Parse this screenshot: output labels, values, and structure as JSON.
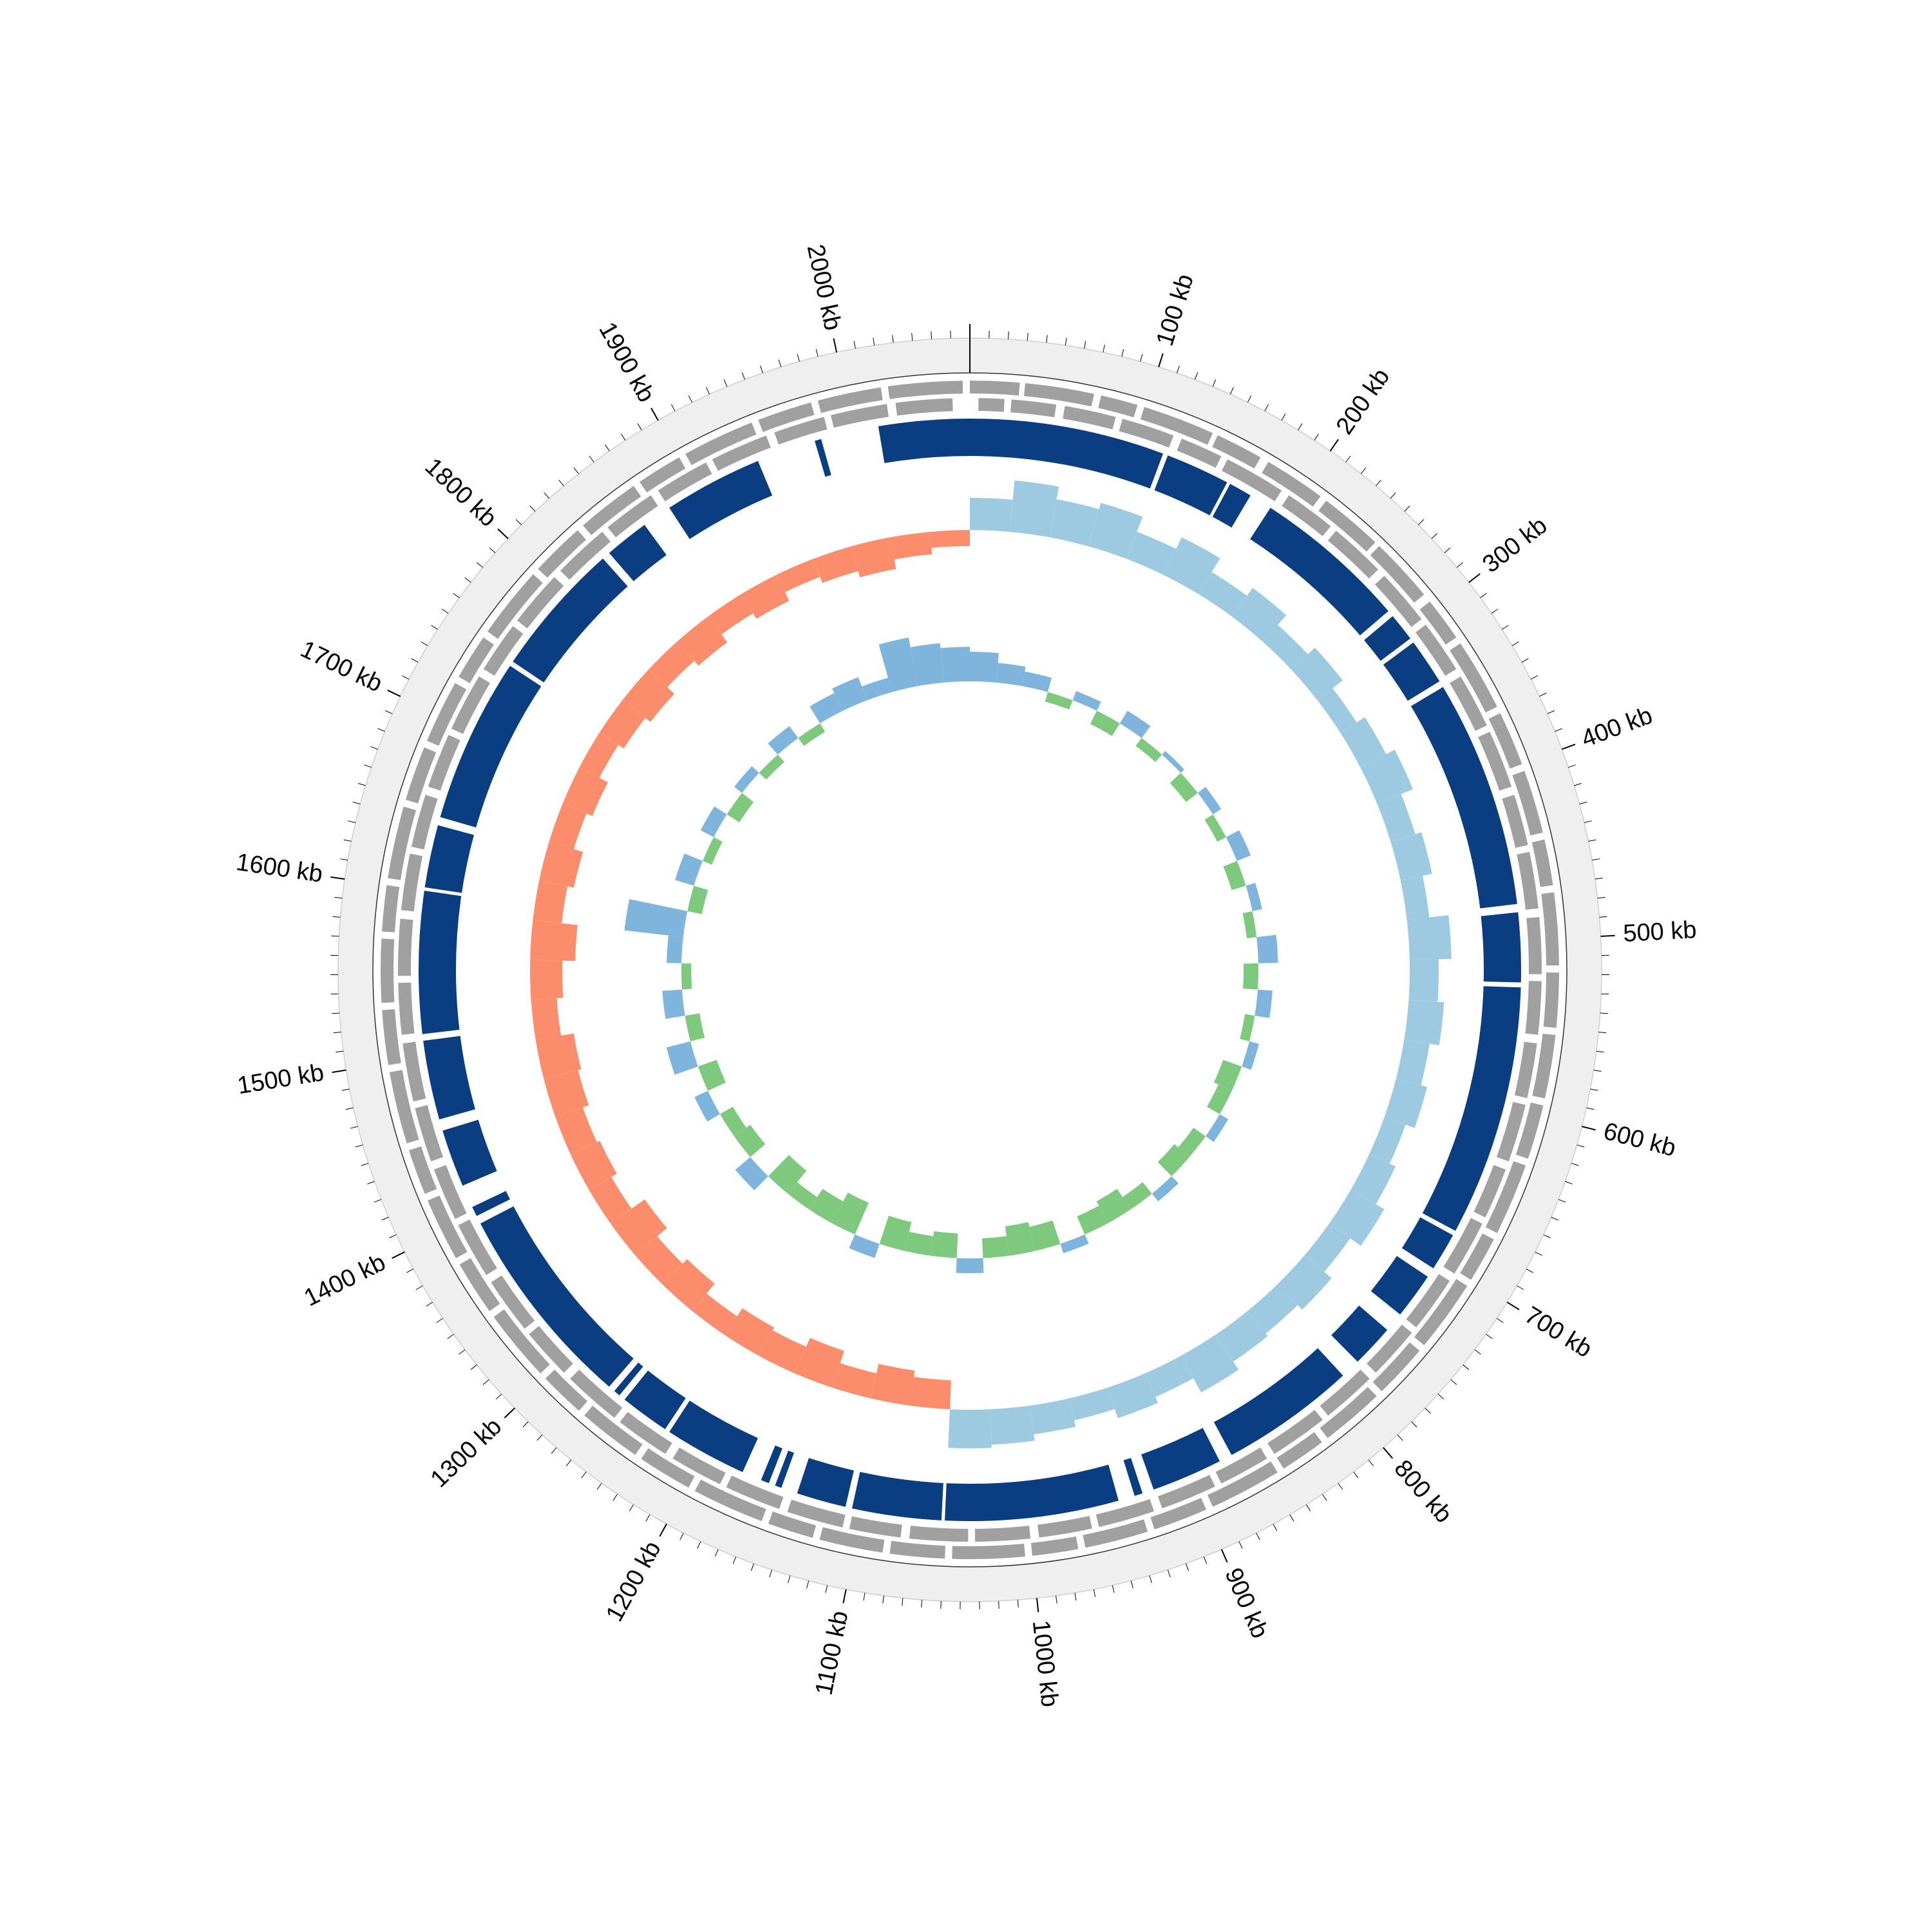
{
  "chart_data": {
    "type": "circular-genome",
    "xlim": [
      0,
      2070
    ],
    "xticks": [
      {
        "value": 100,
        "label": "100 kb"
      },
      {
        "value": 200,
        "label": "200 kb"
      },
      {
        "value": 300,
        "label": "300 kb"
      },
      {
        "value": 400,
        "label": "400 kb"
      },
      {
        "value": 500,
        "label": "500 kb"
      },
      {
        "value": 600,
        "label": "600 kb"
      },
      {
        "value": 700,
        "label": "700 kb"
      },
      {
        "value": 800,
        "label": "800 kb"
      },
      {
        "value": 900,
        "label": "900 kb"
      },
      {
        "value": 1000,
        "label": "1000 kb"
      },
      {
        "value": 1100,
        "label": "1100 kb"
      },
      {
        "value": 1200,
        "label": "1200 kb"
      },
      {
        "value": 1300,
        "label": "1300 kb"
      },
      {
        "value": 1400,
        "label": "1400 kb"
      },
      {
        "value": 1500,
        "label": "1500 kb"
      },
      {
        "value": 1600,
        "label": "1600 kb"
      },
      {
        "value": 1700,
        "label": "1700 kb"
      },
      {
        "value": 1800,
        "label": "1800 kb"
      },
      {
        "value": 1900,
        "label": "1900 kb"
      },
      {
        "value": 2000,
        "label": "2000 kb"
      }
    ],
    "minor_tick_step": 10,
    "gene_color": "#a0a0a0",
    "genes_forward": [
      [
        0,
        28
      ],
      [
        31,
        70
      ],
      [
        74,
        95
      ],
      [
        99,
        140
      ],
      [
        143,
        170
      ],
      [
        175,
        210
      ],
      [
        214,
        250
      ],
      [
        253,
        290
      ],
      [
        295,
        320
      ],
      [
        324,
        365
      ],
      [
        369,
        400
      ],
      [
        404,
        440
      ],
      [
        444,
        470
      ],
      [
        474,
        515
      ],
      [
        519,
        550
      ],
      [
        554,
        590
      ],
      [
        594,
        625
      ],
      [
        629,
        670
      ],
      [
        674,
        700
      ],
      [
        704,
        745
      ],
      [
        749,
        780
      ],
      [
        784,
        820
      ],
      [
        824,
        850
      ],
      [
        854,
        895
      ],
      [
        899,
        930
      ],
      [
        934,
        970
      ],
      [
        974,
        1000
      ],
      [
        1004,
        1045
      ],
      [
        1049,
        1080
      ],
      [
        1084,
        1120
      ],
      [
        1124,
        1150
      ],
      [
        1154,
        1195
      ],
      [
        1199,
        1230
      ],
      [
        1234,
        1270
      ],
      [
        1274,
        1300
      ],
      [
        1304,
        1345
      ],
      [
        1349,
        1380
      ],
      [
        1384,
        1420
      ],
      [
        1424,
        1450
      ],
      [
        1454,
        1495
      ],
      [
        1499,
        1530
      ],
      [
        1534,
        1570
      ],
      [
        1574,
        1600
      ],
      [
        1604,
        1645
      ],
      [
        1649,
        1680
      ],
      [
        1684,
        1720
      ],
      [
        1724,
        1750
      ],
      [
        1754,
        1795
      ],
      [
        1799,
        1830
      ],
      [
        1834,
        1870
      ],
      [
        1874,
        1900
      ],
      [
        1904,
        1945
      ],
      [
        1949,
        1980
      ],
      [
        1984,
        2020
      ],
      [
        2024,
        2066
      ]
    ],
    "genes_reverse": [
      [
        5,
        20
      ],
      [
        24,
        50
      ],
      [
        55,
        85
      ],
      [
        89,
        120
      ],
      [
        125,
        150
      ],
      [
        154,
        190
      ],
      [
        195,
        225
      ],
      [
        229,
        262
      ],
      [
        267,
        300
      ],
      [
        304,
        335
      ],
      [
        340,
        372
      ],
      [
        376,
        410
      ],
      [
        415,
        445
      ],
      [
        449,
        482
      ],
      [
        487,
        520
      ],
      [
        524,
        555
      ],
      [
        560,
        592
      ],
      [
        596,
        630
      ],
      [
        635,
        665
      ],
      [
        669,
        702
      ],
      [
        707,
        740
      ],
      [
        744,
        775
      ],
      [
        780,
        812
      ],
      [
        816,
        850
      ],
      [
        855,
        885
      ],
      [
        889,
        922
      ],
      [
        927,
        960
      ],
      [
        964,
        995
      ],
      [
        1000,
        1032
      ],
      [
        1036,
        1070
      ],
      [
        1075,
        1105
      ],
      [
        1109,
        1142
      ],
      [
        1147,
        1180
      ],
      [
        1184,
        1215
      ],
      [
        1220,
        1252
      ],
      [
        1256,
        1290
      ],
      [
        1295,
        1325
      ],
      [
        1329,
        1362
      ],
      [
        1367,
        1400
      ],
      [
        1404,
        1435
      ],
      [
        1440,
        1472
      ],
      [
        1476,
        1510
      ],
      [
        1515,
        1545
      ],
      [
        1549,
        1582
      ],
      [
        1587,
        1620
      ],
      [
        1624,
        1655
      ],
      [
        1660,
        1692
      ],
      [
        1696,
        1730
      ],
      [
        1735,
        1765
      ],
      [
        1769,
        1802
      ],
      [
        1807,
        1840
      ],
      [
        1844,
        1875
      ],
      [
        1880,
        1912
      ],
      [
        1916,
        1950
      ],
      [
        1955,
        1985
      ],
      [
        1989,
        2022
      ],
      [
        2027,
        2060
      ]
    ],
    "block_color": "#0b3e80",
    "blocks": [
      [
        0,
        118
      ],
      [
        121,
        160
      ],
      [
        162,
        176
      ],
      [
        190,
        284
      ],
      [
        288,
        305
      ],
      [
        308,
        336
      ],
      [
        340,
        478
      ],
      [
        483,
        525
      ],
      [
        528,
        680
      ],
      [
        683,
        706
      ],
      [
        712,
        740
      ],
      [
        752,
        778
      ],
      [
        790,
        872
      ],
      [
        880,
        923
      ],
      [
        930,
        935
      ],
      [
        945,
        1050
      ],
      [
        1052,
        1106
      ],
      [
        1110,
        1140
      ],
      [
        1150,
        1154
      ],
      [
        1158,
        1163
      ],
      [
        1175,
        1225
      ],
      [
        1228,
        1258
      ],
      [
        1262,
        1266
      ],
      [
        1270,
        1395
      ],
      [
        1400,
        1406
      ],
      [
        1420,
        1455
      ],
      [
        1462,
        1510
      ],
      [
        1514,
        1600
      ],
      [
        1602,
        1640
      ],
      [
        1645,
        1745
      ],
      [
        1748,
        1830
      ],
      [
        1835,
        1862
      ],
      [
        1880,
        1940
      ],
      [
        1976,
        1980
      ],
      [
        2015,
        2070
      ]
    ],
    "x": [
      0,
      30,
      60,
      90,
      120,
      150,
      180,
      210,
      240,
      270,
      300,
      330,
      360,
      390,
      420,
      450,
      480,
      510,
      540,
      570,
      600,
      630,
      660,
      690,
      720,
      750,
      780,
      810,
      840,
      870,
      900,
      930,
      960,
      990,
      1020,
      1050,
      1080,
      1110,
      1140,
      1170,
      1200,
      1230,
      1260,
      1290,
      1320,
      1350,
      1380,
      1410,
      1440,
      1470,
      1500,
      1530,
      1560,
      1590,
      1620,
      1650,
      1680,
      1710,
      1740,
      1770,
      1800,
      1830,
      1860,
      1890,
      1920,
      1950,
      1980,
      2010,
      2040
    ],
    "gc_skew": {
      "ylim": [
        -0.2,
        0.2
      ],
      "positive_color": "#9ecae1",
      "negative_color": "#fc8d6c",
      "values": [
        0.1,
        0.16,
        0.12,
        0.14,
        0.09,
        0.13,
        0.08,
        0.11,
        0.07,
        0.1,
        0.06,
        0.09,
        0.12,
        0.08,
        0.1,
        0.07,
        0.13,
        0.09,
        0.11,
        0.08,
        0.1,
        0.07,
        0.09,
        0.12,
        0.08,
        0.11,
        0.09,
        0.1,
        0.13,
        0.08,
        0.1,
        0.07,
        0.09,
        0.11,
        0.12,
        -0.09,
        -0.11,
        -0.08,
        -0.12,
        -0.09,
        -0.1,
        -0.07,
        -0.11,
        -0.09,
        -0.13,
        -0.08,
        -0.1,
        -0.09,
        -0.11,
        -0.12,
        -0.08,
        -0.1,
        -0.14,
        -0.09,
        -0.11,
        -0.08,
        -0.1,
        -0.07,
        -0.09,
        -0.11,
        -0.08,
        -0.1,
        -0.07,
        -0.09,
        -0.06,
        -0.08,
        -0.1,
        -0.07,
        -0.05
      ]
    },
    "gc_content": {
      "ylim": [
        -15,
        15
      ],
      "positive_color": "#7fb5dd",
      "negative_color": "#7ec97e",
      "values": [
        6,
        4,
        3,
        -2,
        2,
        -3,
        3,
        -2,
        1,
        -3,
        2,
        -2,
        3,
        -3,
        2,
        -2,
        4,
        -3,
        3,
        -2,
        2,
        -4,
        -3,
        2,
        -3,
        -4,
        2,
        -3,
        -5,
        -4,
        2,
        -5,
        -6,
        -4,
        3,
        -5,
        -4,
        -6,
        3,
        -7,
        -5,
        -3,
        -6,
        4,
        -4,
        -3,
        3,
        -4,
        5,
        -3,
        4,
        -2,
        3,
        12,
        -3,
        4,
        -2,
        3,
        -3,
        2,
        -2,
        3,
        -2,
        4,
        5,
        3,
        10,
        8,
        7
      ]
    }
  }
}
